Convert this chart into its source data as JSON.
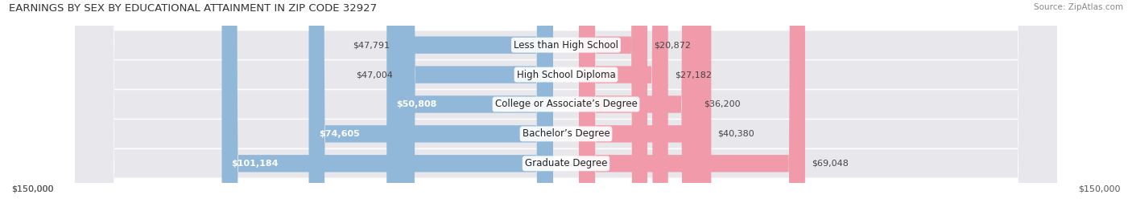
{
  "title": "EARNINGS BY SEX BY EDUCATIONAL ATTAINMENT IN ZIP CODE 32927",
  "source": "Source: ZipAtlas.com",
  "categories": [
    "Less than High School",
    "High School Diploma",
    "College or Associate’s Degree",
    "Bachelor’s Degree",
    "Graduate Degree"
  ],
  "male_values": [
    47791,
    47004,
    50808,
    74605,
    101184
  ],
  "female_values": [
    20872,
    27182,
    36200,
    40380,
    69048
  ],
  "male_color": "#92b8d9",
  "female_color": "#f09aaa",
  "max_val": 150000,
  "bar_height": 0.58,
  "row_bg_color": "#e8e8ec",
  "background_color": "#ffffff",
  "title_fontsize": 9.5,
  "label_fontsize": 8.5,
  "value_fontsize": 8,
  "source_fontsize": 7.5
}
